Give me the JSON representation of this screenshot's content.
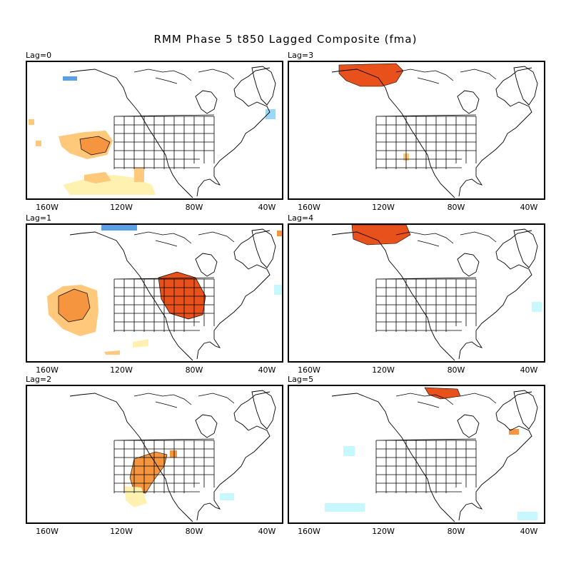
{
  "title": "RMM Phase 5 t850 Lagged Composite (fma)",
  "lon_ticks": [
    "160W",
    "120W",
    "80W",
    "40W"
  ],
  "colors": {
    "warm_light": "#fff2b0",
    "warm_mid": "#ffc87a",
    "warm_strong": "#f59540",
    "warm_dark": "#e8501c",
    "cool_light": "#c8f8ff",
    "cool_mid": "#9ad8f5",
    "cool_strong": "#5aa0e8"
  },
  "panels": [
    {
      "label": "Lag=0"
    },
    {
      "label": "Lag=3"
    },
    {
      "label": "Lag=1"
    },
    {
      "label": "Lag=4"
    },
    {
      "label": "Lag=2"
    },
    {
      "label": "Lag=5"
    }
  ]
}
